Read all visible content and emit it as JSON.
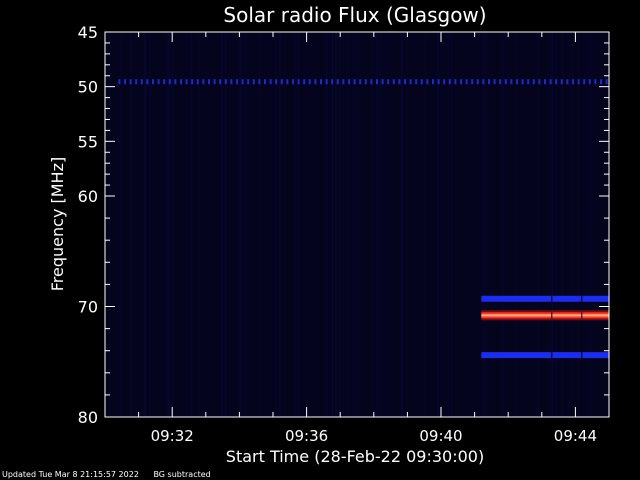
{
  "chart_data": {
    "type": "heatmap",
    "title": "Solar radio Flux (Glasgow)",
    "xlabel": "Start Time (28-Feb-22 09:30:00)",
    "ylabel": "Frequency [MHz]",
    "x_range_minutes": [
      0,
      15
    ],
    "y_range_mhz": [
      45,
      80
    ],
    "y_direction": "top-to-bottom increasing",
    "x_ticks": [
      {
        "minute": 2,
        "label": "09:32"
      },
      {
        "minute": 6,
        "label": "09:36"
      },
      {
        "minute": 10,
        "label": "09:40"
      },
      {
        "minute": 14,
        "label": "09:44"
      }
    ],
    "y_ticks": [
      {
        "mhz": 45,
        "label": "45"
      },
      {
        "mhz": 50,
        "label": "50"
      },
      {
        "mhz": 55,
        "label": "55"
      },
      {
        "mhz": 60,
        "label": "60"
      },
      {
        "mhz": 70,
        "label": "70"
      },
      {
        "mhz": 80,
        "label": "80"
      }
    ],
    "features": [
      {
        "name": "dotted-line",
        "freq_mhz": 49.5,
        "start_min": 0.4,
        "end_min": 15,
        "color": "#1a2bd6"
      },
      {
        "name": "band",
        "freq_mhz": 69.3,
        "start_min": 11.2,
        "end_min": 15,
        "color": "#1c2cf0"
      },
      {
        "name": "band",
        "freq_mhz": 70.8,
        "start_min": 11.2,
        "end_min": 15,
        "color": "#ff3a1a"
      },
      {
        "name": "band",
        "freq_mhz": 74.4,
        "start_min": 11.2,
        "end_min": 15,
        "color": "#1c2cf0"
      }
    ],
    "background_color": "#04041c",
    "grid": false
  },
  "footer": {
    "updated": "Updated Tue Mar  8 21:15:57 2022",
    "note": "BG subtracted"
  }
}
